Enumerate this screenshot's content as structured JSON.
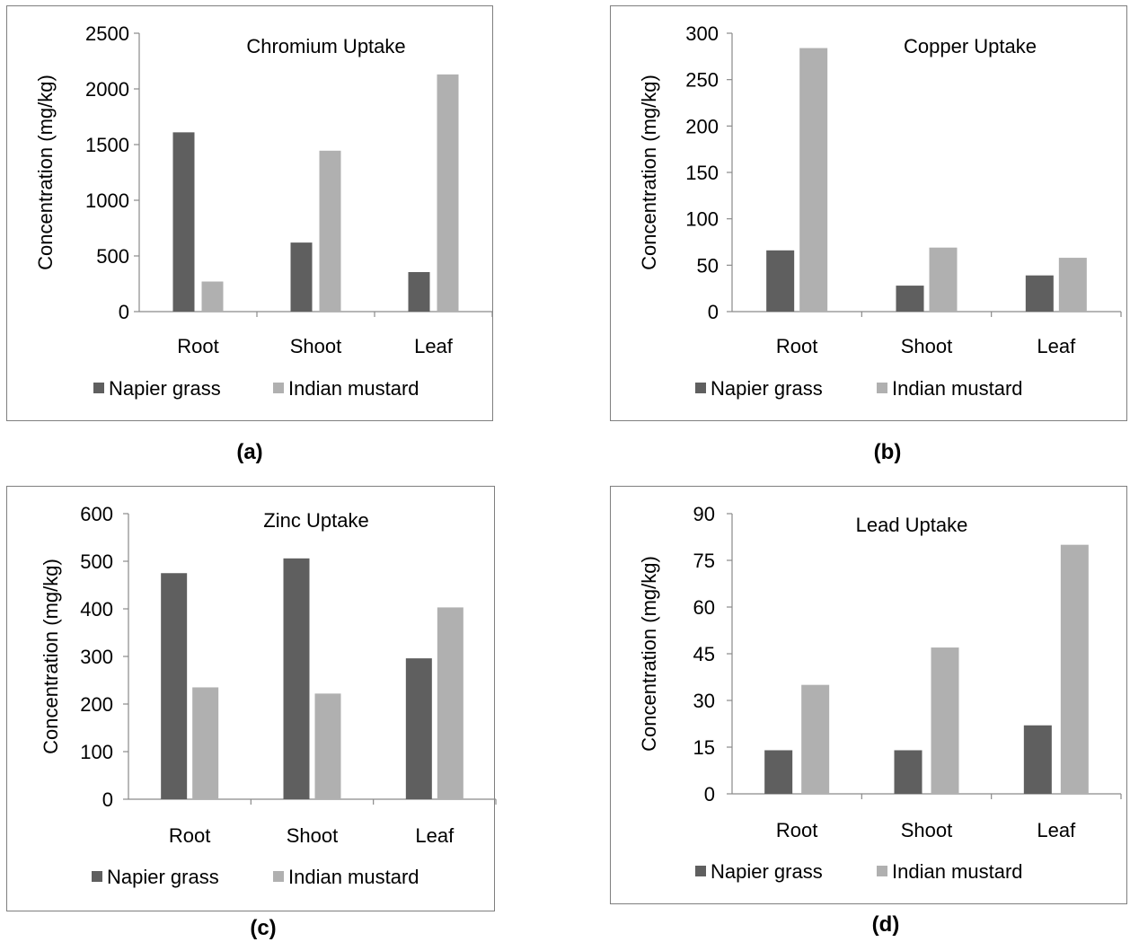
{
  "colors": {
    "napier": "#5f5f5f",
    "mustard": "#b0b0b0",
    "axis": "#8a8a8a",
    "border": "#7f7f7f"
  },
  "chart_data": [
    {
      "type": "bar",
      "caption": "(a)",
      "title": "Chromium Uptake",
      "ylabel": "Concentration (mg/kg)",
      "xlabel": "",
      "categories": [
        "Root",
        "Shoot",
        "Leaf"
      ],
      "series": [
        {
          "name": "Napier grass",
          "values": [
            1610,
            620,
            355
          ]
        },
        {
          "name": "Indian mustard",
          "values": [
            270,
            1445,
            2130
          ]
        }
      ],
      "ylim": [
        0,
        2500
      ],
      "yticks": [
        "0",
        "500",
        "1000",
        "1500",
        "2000",
        "2500"
      ],
      "grid": false,
      "legend": "bottom"
    },
    {
      "type": "bar",
      "caption": "(b)",
      "title": "Copper Uptake",
      "ylabel": "Concentration (mg/kg)",
      "xlabel": "",
      "categories": [
        "Root",
        "Shoot",
        "Leaf"
      ],
      "series": [
        {
          "name": "Napier grass",
          "values": [
            66,
            28,
            39
          ]
        },
        {
          "name": "Indian mustard",
          "values": [
            284,
            69,
            58
          ]
        }
      ],
      "ylim": [
        0,
        300
      ],
      "yticks": [
        "0",
        "50",
        "100",
        "150",
        "200",
        "250",
        "300"
      ],
      "grid": false,
      "legend": "bottom"
    },
    {
      "type": "bar",
      "caption": "(c)",
      "title": "Zinc Uptake",
      "ylabel": "Concentration (mg/kg)",
      "xlabel": "",
      "categories": [
        "Root",
        "Shoot",
        "Leaf"
      ],
      "series": [
        {
          "name": "Napier grass",
          "values": [
            475,
            506,
            296
          ]
        },
        {
          "name": "Indian mustard",
          "values": [
            235,
            222,
            403
          ]
        }
      ],
      "ylim": [
        0,
        600
      ],
      "yticks": [
        "0",
        "100",
        "200",
        "300",
        "400",
        "500",
        "600"
      ],
      "grid": false,
      "legend": "bottom"
    },
    {
      "type": "bar",
      "caption": "(d)",
      "title": "Lead Uptake",
      "ylabel": "Concentration (mg/kg)",
      "xlabel": "",
      "categories": [
        "Root",
        "Shoot",
        "Leaf"
      ],
      "series": [
        {
          "name": "Napier grass",
          "values": [
            14,
            14,
            22
          ]
        },
        {
          "name": "Indian mustard",
          "values": [
            35,
            47,
            80
          ]
        }
      ],
      "ylim": [
        0,
        90
      ],
      "yticks": [
        "0",
        "15",
        "30",
        "45",
        "60",
        "75",
        "90"
      ],
      "grid": false,
      "legend": "bottom"
    }
  ]
}
